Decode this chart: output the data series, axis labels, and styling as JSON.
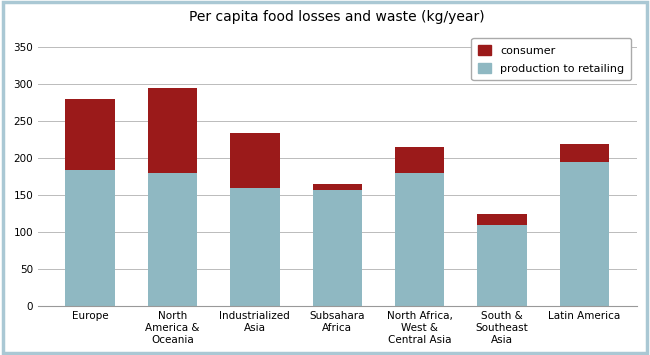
{
  "categories": [
    "Europe",
    "North\nAmerica &\nOceania",
    "Industrialized\nAsia",
    "Subsahara\nAfrica",
    "North Africa,\nWest &\nCentral Asia",
    "South &\nSoutheast\nAsia",
    "Latin America"
  ],
  "production_to_retailing": [
    185,
    180,
    160,
    158,
    180,
    110,
    195
  ],
  "consumer": [
    95,
    115,
    75,
    8,
    35,
    15,
    25
  ],
  "consumer_color": "#9B1A1A",
  "production_color": "#8fb8c2",
  "title": "Per capita food losses and waste (kg/year)",
  "ylim": [
    0,
    370
  ],
  "yticks": [
    0,
    50,
    100,
    150,
    200,
    250,
    300,
    350
  ],
  "legend_consumer": "consumer",
  "legend_production": "production to retailing",
  "bar_width": 0.6,
  "background_color": "#ffffff",
  "border_color": "#aac8d4",
  "grid_color": "#bbbbbb",
  "title_fontsize": 10,
  "tick_fontsize": 7.5,
  "legend_fontsize": 8
}
